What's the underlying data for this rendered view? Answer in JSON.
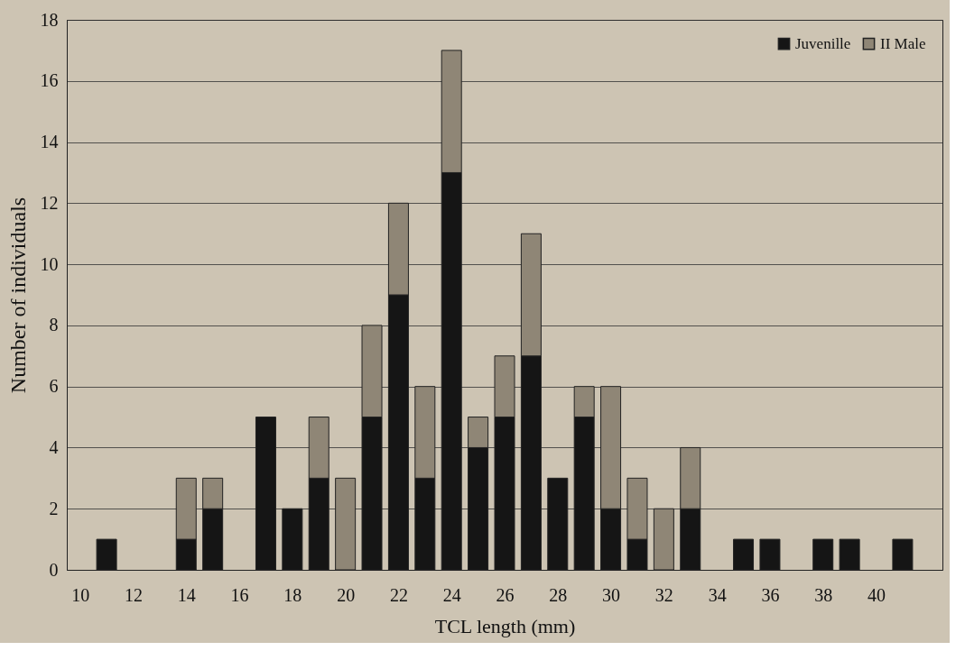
{
  "chart_data": {
    "type": "bar",
    "stacked": true,
    "xlabel": "TCL length (mm)",
    "ylabel": "Number of individuals",
    "x": [
      11,
      14,
      15,
      17,
      18,
      19,
      20,
      21,
      22,
      23,
      24,
      25,
      26,
      27,
      28,
      29,
      30,
      31,
      32,
      33,
      35,
      36,
      38,
      39,
      41
    ],
    "series": [
      {
        "name": "Juvenille",
        "color": "#151515",
        "values": [
          1,
          1,
          2,
          5,
          2,
          3,
          0,
          5,
          9,
          3,
          13,
          4,
          5,
          7,
          3,
          5,
          2,
          1,
          0,
          2,
          1,
          1,
          1,
          1,
          1
        ]
      },
      {
        "name": "II Male",
        "color": "#8f8676",
        "values": [
          null,
          2,
          1,
          null,
          null,
          2,
          3,
          3,
          3,
          3,
          4,
          1,
          2,
          4,
          null,
          1,
          4,
          2,
          2,
          2,
          null,
          null,
          null,
          null,
          null
        ]
      }
    ],
    "xlim": [
      9.5,
      42.5
    ],
    "xticks": [
      10,
      12,
      14,
      16,
      18,
      20,
      22,
      24,
      26,
      28,
      30,
      32,
      34,
      36,
      38,
      40
    ],
    "ylim": [
      0,
      18
    ],
    "yticks": [
      0,
      2,
      4,
      6,
      8,
      10,
      12,
      14,
      16,
      18
    ],
    "grid": "y",
    "legend": "top right"
  }
}
